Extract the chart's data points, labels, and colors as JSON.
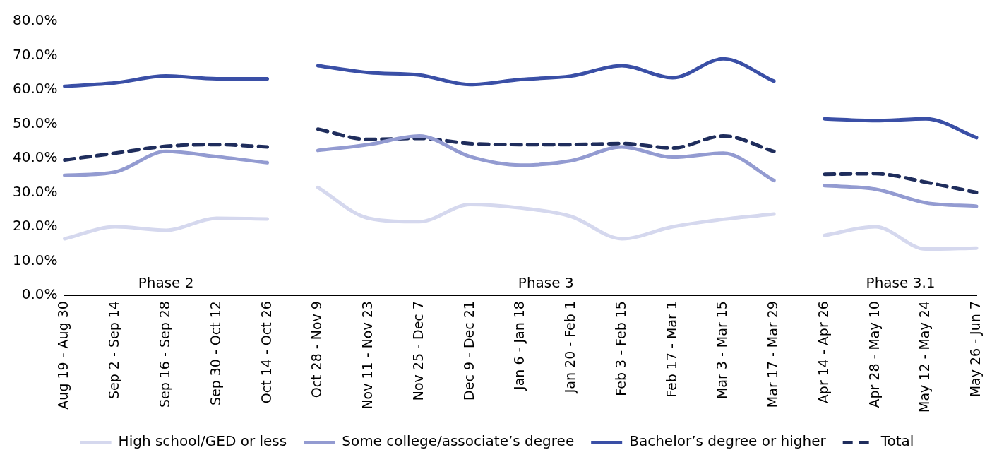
{
  "chart_data": {
    "type": "line",
    "categories": [
      "Aug 19 - Aug 30",
      "Sep 2 - Sep 14",
      "Sep 16 - Sep 28",
      "Sep 30 - Oct 12",
      "Oct 14 - Oct 26",
      "Oct 28 - Nov 9",
      "Nov 11 - Nov 23",
      "Nov 25 - Dec 7",
      "Dec 9 - Dec 21",
      "Jan 6 - Jan 18",
      "Jan 20 - Feb 1",
      "Feb 3 - Feb 15",
      "Feb 17 - Mar 1",
      "Mar 3 - Mar 15",
      "Mar 17 - Mar 29",
      "Apr 14 - Apr 26",
      "Apr 28 - May 10",
      "May 12 - May 24",
      "May 26 - Jun 7"
    ],
    "series": [
      {
        "name": "High school/GED or less",
        "color": "#d5d8ee",
        "x": [
          "Aug 19 - Aug 30",
          "Sep 2 - Sep 14",
          "Sep 16 - Sep 28",
          "Sep 30 - Oct 12",
          "Oct 14 - Oct 26"
        ],
        "values": [
          16.5,
          20,
          19,
          22.5,
          22.3
        ]
      },
      {
        "name": "Some college/associate’s degree",
        "color": "#939bd1",
        "x": [
          "Aug 19 - Aug 30",
          "Sep 2 - Sep 14",
          "Sep 16 - Sep 28",
          "Sep 30 - Oct 12",
          "Oct 14 - Oct 26"
        ],
        "values": [
          35,
          36,
          42,
          40.5,
          38.7
        ]
      },
      {
        "name": "Bachelor’s degree or higher",
        "color": "#3a4fa6",
        "x": [
          "Aug 19 - Aug 30",
          "Sep 2 - Sep 14",
          "Sep 16 - Sep 28",
          "Sep 30 - Oct 12",
          "Oct 14 - Oct 26"
        ],
        "values": [
          61,
          62,
          64,
          63.2,
          63.2
        ]
      },
      {
        "name": "Total",
        "color": "#1f2d5c",
        "line_style": "dashed",
        "x": [
          "Aug 19 - Aug 30",
          "Sep 2 - Sep 14",
          "Sep 16 - Sep 28",
          "Sep 30 - Oct 12",
          "Oct 14 - Oct 26"
        ],
        "values": [
          39.5,
          41.5,
          43.5,
          44,
          43.3
        ]
      },
      {
        "color": "#d5d8ee",
        "x": [
          "Oct 28 - Nov 9",
          "Nov 11 - Nov 23",
          "Nov 25 - Dec 7",
          "Dec 9 - Dec 21",
          "Jan 6 - Jan 18",
          "Jan 20 - Feb 1",
          "Feb 3 - Feb 15",
          "Feb 17 - Mar 1",
          "Mar 3 - Mar 15",
          "Mar 17 - Mar 29"
        ],
        "values": [
          31.5,
          22.5,
          21.5,
          26.5,
          25.5,
          23,
          16.5,
          20,
          22.2,
          23.7
        ]
      },
      {
        "color": "#939bd1",
        "x": [
          "Oct 28 - Nov 9",
          "Nov 11 - Nov 23",
          "Nov 25 - Dec 7",
          "Dec 9 - Dec 21",
          "Jan 6 - Jan 18",
          "Jan 20 - Feb 1",
          "Feb 3 - Feb 15",
          "Feb 17 - Mar 1",
          "Mar 3 - Mar 15",
          "Mar 17 - Mar 29"
        ],
        "values": [
          42.3,
          44,
          46.5,
          40.5,
          38,
          39.3,
          43.3,
          40.3,
          41.5,
          33.5
        ]
      },
      {
        "color": "#3a4fa6",
        "x": [
          "Oct 28 - Nov 9",
          "Nov 11 - Nov 23",
          "Nov 25 - Dec 7",
          "Dec 9 - Dec 21",
          "Jan 6 - Jan 18",
          "Jan 20 - Feb 1",
          "Feb 3 - Feb 15",
          "Feb 17 - Mar 1",
          "Mar 3 - Mar 15",
          "Mar 17 - Mar 29"
        ],
        "values": [
          67,
          65,
          64.3,
          61.5,
          63,
          64,
          67,
          63.5,
          69,
          62.5
        ]
      },
      {
        "color": "#1f2d5c",
        "line_style": "dashed",
        "x": [
          "Oct 28 - Nov 9",
          "Nov 11 - Nov 23",
          "Nov 25 - Dec 7",
          "Dec 9 - Dec 21",
          "Jan 6 - Jan 18",
          "Jan 20 - Feb 1",
          "Feb 3 - Feb 15",
          "Feb 17 - Mar 1",
          "Mar 3 - Mar 15",
          "Mar 17 - Mar 29"
        ],
        "values": [
          48.5,
          45.5,
          45.8,
          44.3,
          44,
          44,
          44.3,
          43,
          46.5,
          42
        ]
      },
      {
        "color": "#d5d8ee",
        "x": [
          "Apr 14 - Apr 26",
          "Apr 28 - May 10",
          "May 12 - May 24",
          "May 26 - Jun 7"
        ],
        "values": [
          17.5,
          20,
          13.5,
          13.8
        ]
      },
      {
        "color": "#939bd1",
        "x": [
          "Apr 14 - Apr 26",
          "Apr 28 - May 10",
          "May 12 - May 24",
          "May 26 - Jun 7"
        ],
        "values": [
          32,
          31,
          27,
          26
        ]
      },
      {
        "color": "#3a4fa6",
        "x": [
          "Apr 14 - Apr 26",
          "Apr 28 - May 10",
          "May 12 - May 24",
          "May 26 - Jun 7"
        ],
        "values": [
          51.5,
          51,
          51.5,
          46
        ]
      },
      {
        "color": "#1f2d5c",
        "line_style": "dashed",
        "x": [
          "Apr 14 - Apr 26",
          "Apr 28 - May 10",
          "May 12 - May 24",
          "May 26 - Jun 7"
        ],
        "values": [
          35.3,
          35.5,
          33,
          30
        ]
      }
    ],
    "ylim": [
      0,
      80
    ],
    "yticks": [
      {
        "value": 0,
        "label": "0.0%"
      },
      {
        "value": 10,
        "label": "10.0%"
      },
      {
        "value": 20,
        "label": "20.0%"
      },
      {
        "value": 30,
        "label": "30.0%"
      },
      {
        "value": 40,
        "label": "40.0%"
      },
      {
        "value": 50,
        "label": "50.0%"
      },
      {
        "value": 60,
        "label": "60.0%"
      },
      {
        "value": 70,
        "label": "70.0%"
      },
      {
        "value": 80,
        "label": "80.0%"
      }
    ],
    "annotations": [
      "Phase 2",
      "Phase 3",
      "Phase 3.1"
    ],
    "grid": false,
    "legend": "bottom",
    "marker": "none"
  }
}
